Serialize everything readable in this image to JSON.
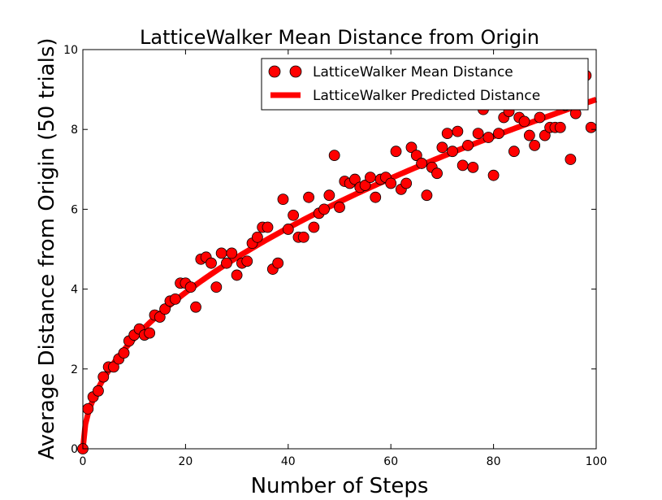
{
  "chart_data": {
    "type": "scatter",
    "title": "LatticeWalker Mean Distance from Origin",
    "xlabel": "Number of Steps",
    "ylabel": "Average Distance from Origin (50 trials)",
    "xlim": [
      0,
      100
    ],
    "ylim": [
      0,
      10
    ],
    "xticks": [
      "0",
      "20",
      "40",
      "60",
      "80",
      "100"
    ],
    "yticks": [
      "0",
      "2",
      "4",
      "6",
      "8",
      "10"
    ],
    "grid": false,
    "legend": "top-right",
    "series": [
      {
        "name": "LatticeWalker Mean Distance",
        "kind": "scatter",
        "color": "#ff0000",
        "x": [
          0,
          1,
          2,
          3,
          4,
          5,
          6,
          7,
          8,
          9,
          10,
          11,
          12,
          13,
          14,
          15,
          16,
          17,
          18,
          19,
          20,
          21,
          22,
          23,
          24,
          25,
          26,
          27,
          28,
          29,
          30,
          31,
          32,
          33,
          34,
          35,
          36,
          37,
          38,
          39,
          40,
          41,
          42,
          43,
          44,
          45,
          46,
          47,
          48,
          49,
          50,
          51,
          52,
          53,
          54,
          55,
          56,
          57,
          58,
          59,
          60,
          61,
          62,
          63,
          64,
          65,
          66,
          67,
          68,
          69,
          70,
          71,
          72,
          73,
          74,
          75,
          76,
          77,
          78,
          79,
          80,
          81,
          82,
          83,
          84,
          85,
          86,
          87,
          88,
          89,
          90,
          91,
          92,
          93,
          94,
          95,
          96,
          97,
          98,
          99
        ],
        "y": [
          0.0,
          1.0,
          1.3,
          1.45,
          1.8,
          2.05,
          2.05,
          2.25,
          2.4,
          2.7,
          2.85,
          3.0,
          2.85,
          2.9,
          3.35,
          3.3,
          3.5,
          3.7,
          3.75,
          4.15,
          4.15,
          4.05,
          3.55,
          4.75,
          4.8,
          4.65,
          4.05,
          4.9,
          4.65,
          4.9,
          4.35,
          4.65,
          4.7,
          5.15,
          5.3,
          5.55,
          5.55,
          4.5,
          4.65,
          6.25,
          5.5,
          5.85,
          5.3,
          5.3,
          6.3,
          5.55,
          5.9,
          6.0,
          6.35,
          7.35,
          6.05,
          6.7,
          6.65,
          6.75,
          6.55,
          6.6,
          6.8,
          6.3,
          6.75,
          6.8,
          6.65,
          7.45,
          6.5,
          6.65,
          7.55,
          7.35,
          7.15,
          6.35,
          7.05,
          6.9,
          7.55,
          7.9,
          7.45,
          7.95,
          7.1,
          7.6,
          7.05,
          7.9,
          8.5,
          7.8,
          6.85,
          7.9,
          8.3,
          8.45,
          7.45,
          8.3,
          8.2,
          7.85,
          7.6,
          8.3,
          7.85,
          8.05,
          8.05,
          8.05,
          8.6,
          7.25,
          8.4,
          9.3,
          9.35,
          8.05
        ]
      },
      {
        "name": "LatticeWalker Predicted Distance",
        "kind": "line",
        "color": "#ff0000",
        "formula": "0.875 * sqrt(x)",
        "x_range": [
          0,
          100
        ]
      }
    ]
  }
}
